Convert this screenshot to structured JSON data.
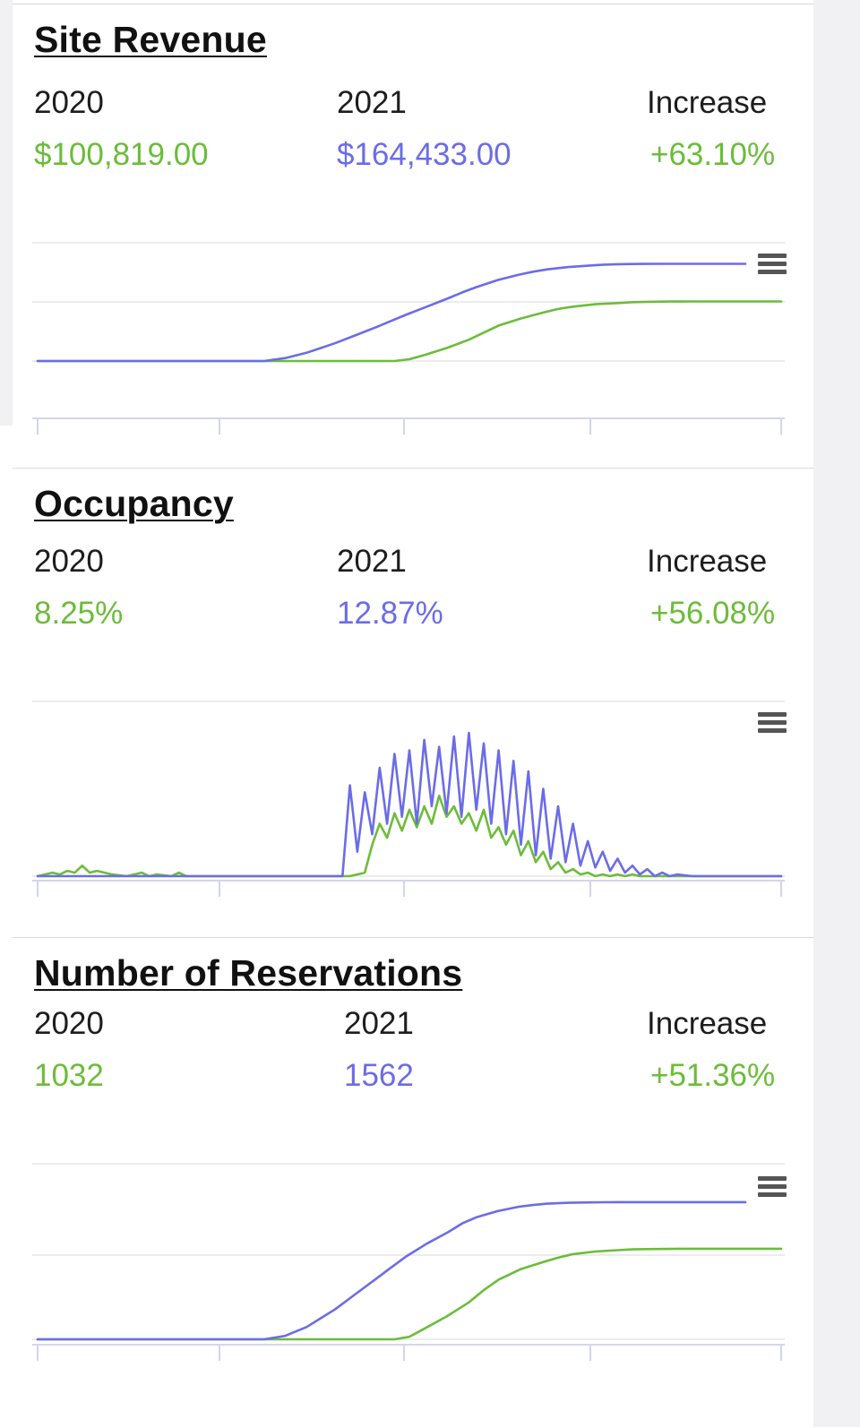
{
  "colors": {
    "y2020": "#6cbc3a",
    "y2021": "#6b6ce8",
    "grid": "#e6e6e6",
    "axis": "#d3d5ec",
    "text": "#1d1d1d"
  },
  "icons": {
    "chart_menu": "hamburger-menu-icon"
  },
  "cards": [
    {
      "title": "Site Revenue",
      "stats": {
        "label_2020": "2020",
        "value_2020": "$100,819.00",
        "label_2021": "2021",
        "value_2021": "$164,433.00",
        "label_increase": "Increase",
        "value_increase": "+63.10%"
      }
    },
    {
      "title": "Occupancy",
      "stats": {
        "label_2020": "2020",
        "value_2020": "8.25%",
        "label_2021": "2021",
        "value_2021": "12.87%",
        "label_increase": "Increase",
        "value_increase": "+56.08%"
      }
    },
    {
      "title": "Number of Reservations",
      "stats": {
        "label_2020": "2020",
        "value_2020": "1032",
        "label_2021": "2021",
        "value_2021": "1562",
        "label_increase": "Increase",
        "value_increase": "+51.36%"
      }
    }
  ],
  "chart_data": [
    {
      "type": "line",
      "grid": true,
      "ylim": [
        0,
        200000
      ],
      "x": [
        0,
        5,
        10,
        15,
        20,
        25,
        30,
        32,
        35,
        38,
        40,
        42,
        45,
        48,
        50,
        52,
        55,
        58,
        60,
        62,
        65,
        68,
        70,
        72,
        75,
        78,
        80,
        82,
        85,
        88,
        90,
        92,
        95,
        98,
        100
      ],
      "series": [
        {
          "color": "#6cbc3a",
          "values": [
            0,
            0,
            0,
            0,
            0,
            0,
            0,
            0,
            0,
            0,
            0,
            0,
            0,
            0,
            3000,
            10000,
            22000,
            36000,
            48000,
            60000,
            72000,
            82000,
            88000,
            92000,
            96000,
            98000,
            99500,
            100200,
            100600,
            100819,
            100819,
            100819,
            100819,
            100819,
            100819
          ]
        },
        {
          "color": "#6b6ce8",
          "values": [
            0,
            0,
            0,
            0,
            0,
            0,
            0,
            0,
            5000,
            14000,
            22000,
            30000,
            44000,
            58000,
            68000,
            78000,
            92000,
            106000,
            116000,
            125000,
            137000,
            146000,
            151000,
            155000,
            159000,
            161500,
            163000,
            163800,
            164200,
            164400,
            164433,
            164433,
            164433,
            164433,
            164433
          ]
        }
      ]
    },
    {
      "type": "line",
      "grid": true,
      "ylim": [
        0,
        100
      ],
      "x": [
        0,
        2,
        3,
        4,
        5,
        6,
        7,
        8,
        10,
        12,
        14,
        15,
        16,
        18,
        19,
        20,
        22,
        25,
        28,
        30,
        31,
        31.5,
        32,
        33,
        34,
        35,
        36,
        37,
        38,
        39,
        40,
        41,
        42,
        43,
        44,
        45,
        46,
        47,
        48,
        49,
        50,
        51,
        52,
        53,
        54,
        55,
        56,
        57,
        58,
        59,
        60,
        61,
        62,
        63,
        64,
        65,
        66,
        67,
        68,
        69,
        70,
        71,
        72,
        73,
        74,
        75,
        76,
        77,
        78,
        79,
        80,
        81,
        82,
        83,
        84,
        85,
        86,
        88,
        90,
        95,
        100
      ],
      "series": [
        {
          "color": "#6cbc3a",
          "values": [
            0,
            2,
            1,
            3,
            2,
            6,
            2,
            3,
            1,
            0,
            2,
            0,
            1,
            0,
            2,
            0,
            0,
            0,
            0,
            0,
            0,
            0,
            0,
            0,
            0,
            0,
            0,
            0,
            0,
            0,
            0,
            0,
            0,
            1,
            2,
            18,
            30,
            22,
            36,
            26,
            38,
            28,
            40,
            30,
            46,
            34,
            40,
            30,
            36,
            26,
            38,
            22,
            28,
            18,
            26,
            12,
            20,
            8,
            14,
            4,
            8,
            2,
            4,
            1,
            2,
            0,
            1,
            0,
            1,
            0,
            1,
            0,
            0,
            0,
            0,
            0,
            0,
            0,
            0,
            0,
            0
          ]
        },
        {
          "color": "#6b6ce8",
          "values": [
            0,
            0,
            0,
            0,
            0,
            0,
            0,
            0,
            0,
            0,
            0,
            0,
            0,
            0,
            0,
            0,
            0,
            0,
            0,
            0,
            0,
            0,
            0,
            0,
            0,
            0,
            0,
            0,
            0,
            0,
            0,
            0,
            52,
            14,
            48,
            24,
            62,
            30,
            70,
            34,
            72,
            30,
            78,
            40,
            74,
            36,
            80,
            34,
            82,
            38,
            76,
            30,
            72,
            24,
            66,
            18,
            60,
            12,
            50,
            10,
            40,
            8,
            30,
            6,
            20,
            5,
            14,
            3,
            10,
            2,
            6,
            1,
            4,
            0,
            2,
            0,
            1,
            0,
            0,
            0,
            0
          ]
        }
      ]
    },
    {
      "type": "line",
      "grid": true,
      "ylim": [
        0,
        2000
      ],
      "x": [
        0,
        5,
        10,
        15,
        20,
        25,
        30,
        32,
        35,
        38,
        40,
        42,
        45,
        48,
        50,
        52,
        55,
        58,
        60,
        62,
        65,
        68,
        70,
        72,
        75,
        78,
        80,
        82,
        85,
        88,
        90,
        92,
        95,
        98,
        100
      ],
      "series": [
        {
          "color": "#6cbc3a",
          "values": [
            0,
            0,
            0,
            0,
            0,
            0,
            0,
            0,
            0,
            0,
            0,
            0,
            0,
            0,
            30,
            120,
            260,
            420,
            560,
            680,
            800,
            880,
            930,
            970,
            1000,
            1015,
            1024,
            1028,
            1030,
            1032,
            1032,
            1032,
            1032,
            1032,
            1032
          ]
        },
        {
          "color": "#6b6ce8",
          "values": [
            0,
            0,
            0,
            0,
            0,
            0,
            0,
            0,
            40,
            140,
            240,
            340,
            520,
            700,
            820,
            940,
            1090,
            1220,
            1320,
            1390,
            1460,
            1510,
            1530,
            1545,
            1555,
            1559,
            1561,
            1562,
            1562,
            1562,
            1562,
            1562,
            1562,
            1562,
            1562
          ]
        }
      ]
    }
  ]
}
